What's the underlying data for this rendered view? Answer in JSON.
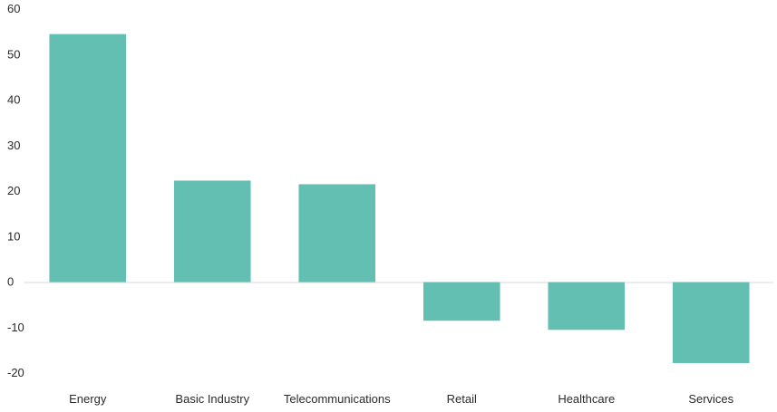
{
  "chart_data": {
    "type": "bar",
    "categories": [
      "Energy",
      "Basic Industry",
      "Telecommunications",
      "Retail",
      "Healthcare",
      "Services"
    ],
    "values": [
      54.5,
      22.3,
      21.5,
      -8.5,
      -10.5,
      -17.8
    ],
    "title": "",
    "xlabel": "",
    "ylabel": "",
    "ylim": [
      -20,
      60
    ],
    "yticks": [
      -20,
      -10,
      0,
      10,
      20,
      30,
      40,
      50,
      60
    ],
    "grid": false,
    "legend": "none",
    "bar_color": "#62bfb2",
    "axis_color": "#d9d9d9"
  }
}
